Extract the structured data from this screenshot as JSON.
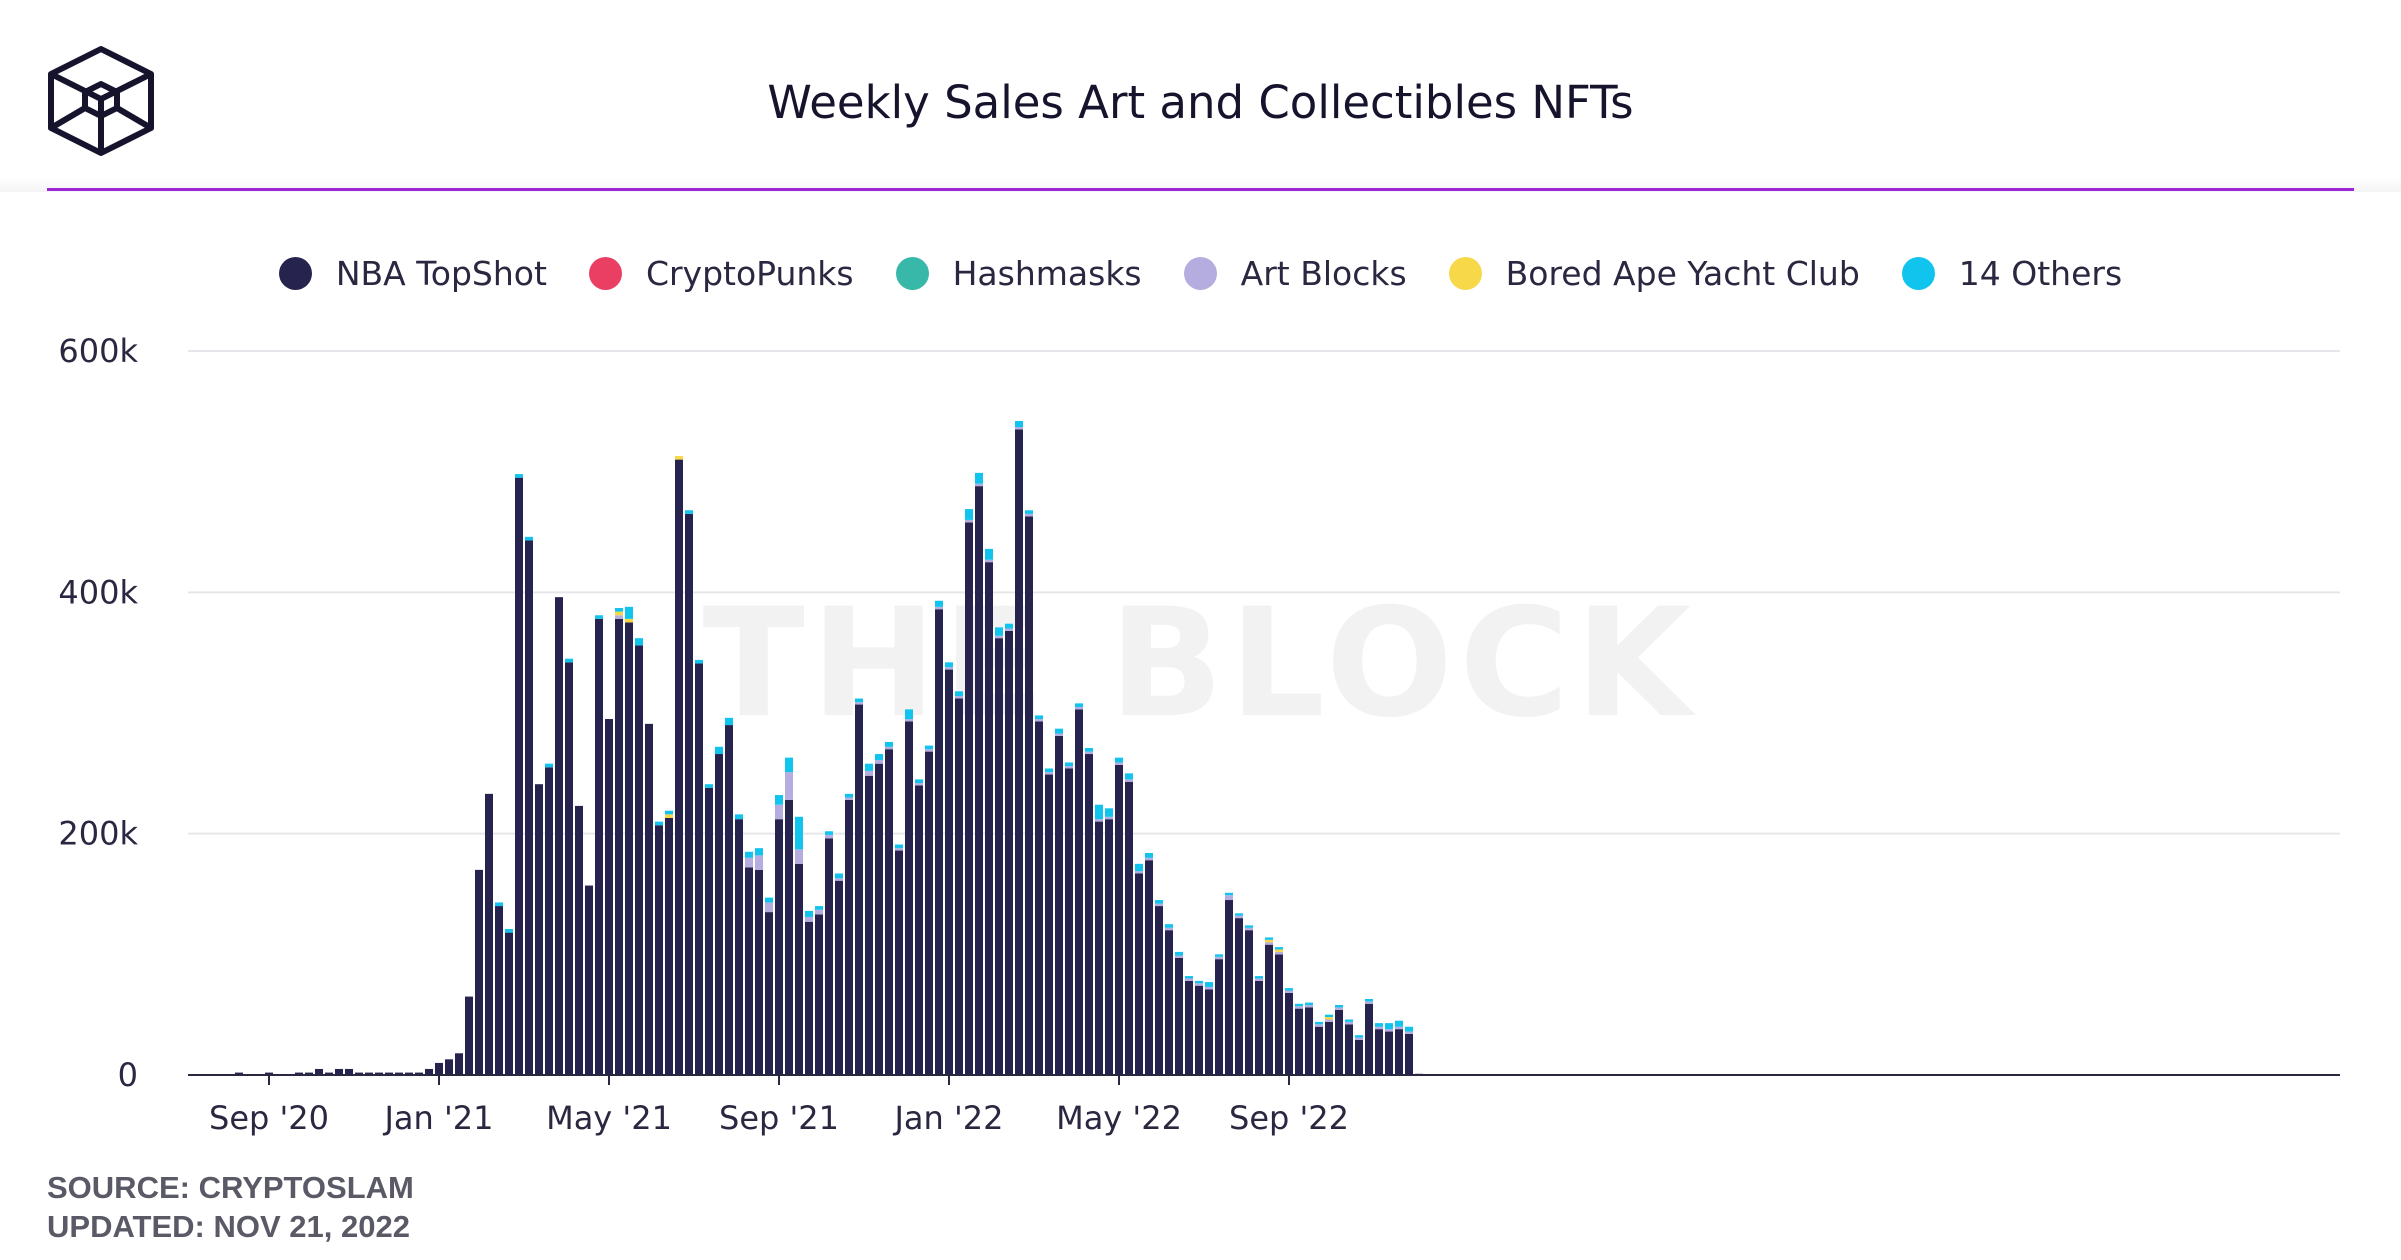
{
  "brand": {
    "logo_icon": "the-block-cube-logo-icon"
  },
  "chart_data": {
    "type": "bar",
    "stacked": true,
    "title": "Weekly Sales Art and Collectibles NFTs",
    "xlabel": "",
    "ylabel": "",
    "ylim": [
      0,
      600000
    ],
    "yticks": [
      {
        "value": 0,
        "label": "0"
      },
      {
        "value": 200000,
        "label": "200k"
      },
      {
        "value": 400000,
        "label": "400k"
      },
      {
        "value": 600000,
        "label": "600k"
      }
    ],
    "xticks": [
      {
        "index": 4,
        "label": "Sep '20"
      },
      {
        "index": 21,
        "label": "Jan '21"
      },
      {
        "index": 38,
        "label": "May '21"
      },
      {
        "index": 55,
        "label": "Sep '21"
      },
      {
        "index": 72,
        "label": "Jan '22"
      },
      {
        "index": 89,
        "label": "May '22"
      },
      {
        "index": 106,
        "label": "Sep '22"
      }
    ],
    "grid": true,
    "watermark": "THE BLOCK",
    "series": [
      {
        "name": "NBA TopShot",
        "color": "#27234f",
        "values": [
          0,
          2000,
          0,
          0,
          2000,
          0,
          0,
          2000,
          2000,
          5000,
          2000,
          5000,
          5000,
          2000,
          2000,
          2000,
          2000,
          2000,
          2000,
          2000,
          5000,
          10000,
          13000,
          18000,
          65000,
          170000,
          233000,
          140000,
          118000,
          495000,
          443000,
          241000,
          255000,
          396000,
          342000,
          223000,
          157000,
          378000,
          295000,
          378000,
          375000,
          356000,
          291000,
          207000,
          213000,
          510000,
          465000,
          341000,
          238000,
          266000,
          290000,
          212000,
          172000,
          170000,
          135000,
          212000,
          228000,
          175000,
          127000,
          133000,
          196000,
          161000,
          228000,
          307000,
          248000,
          258000,
          270000,
          186000,
          293000,
          240000,
          268000,
          386000,
          336000,
          312000,
          458000,
          488000,
          425000,
          362000,
          368000,
          535000,
          463000,
          293000,
          249000,
          281000,
          254000,
          303000,
          266000,
          210000,
          212000,
          257000,
          243000,
          167000,
          178000,
          140000,
          120000,
          97000,
          78000,
          74000,
          71000,
          96000,
          145000,
          130000,
          120000,
          78000,
          108000,
          100000,
          68000,
          55000,
          56000,
          40000,
          44000,
          54000,
          42000,
          29000,
          59000,
          38000,
          36000,
          38000,
          34000,
          1000
        ]
      },
      {
        "name": "CryptoPunks",
        "color": "#ea3e63",
        "values": [
          0,
          0,
          0,
          0,
          0,
          0,
          0,
          0,
          0,
          0,
          0,
          0,
          0,
          0,
          0,
          0,
          0,
          0,
          0,
          0,
          0,
          0,
          0,
          0,
          0,
          0,
          0,
          0,
          0,
          0,
          0,
          0,
          0,
          0,
          0,
          0,
          0,
          0,
          0,
          0,
          0,
          0,
          0,
          0,
          0,
          0,
          0,
          0,
          0,
          0,
          0,
          0,
          0,
          0,
          0,
          0,
          0,
          0,
          0,
          0,
          0,
          0,
          0,
          0,
          0,
          0,
          0,
          0,
          0,
          0,
          0,
          0,
          0,
          0,
          0,
          0,
          0,
          0,
          0,
          0,
          0,
          0,
          0,
          0,
          0,
          0,
          0,
          0,
          0,
          0,
          0,
          0,
          0,
          0,
          0,
          0,
          0,
          0,
          0,
          0,
          0,
          0,
          0,
          0,
          0,
          0,
          0,
          0,
          0,
          0,
          0,
          0,
          0,
          0,
          0,
          0,
          0,
          0,
          0,
          0
        ]
      },
      {
        "name": "Hashmasks",
        "color": "#37b8a9",
        "values": [
          0,
          0,
          0,
          0,
          0,
          0,
          0,
          0,
          0,
          0,
          0,
          0,
          0,
          0,
          0,
          0,
          0,
          0,
          0,
          0,
          0,
          0,
          0,
          0,
          0,
          0,
          0,
          0,
          0,
          0,
          0,
          0,
          0,
          0,
          0,
          0,
          0,
          0,
          0,
          0,
          0,
          0,
          0,
          0,
          0,
          0,
          0,
          0,
          0,
          0,
          0,
          0,
          0,
          0,
          0,
          0,
          0,
          0,
          0,
          0,
          0,
          0,
          0,
          0,
          0,
          0,
          0,
          0,
          0,
          0,
          0,
          0,
          0,
          0,
          0,
          0,
          0,
          0,
          0,
          0,
          0,
          0,
          0,
          0,
          0,
          0,
          0,
          0,
          0,
          0,
          0,
          0,
          0,
          0,
          0,
          0,
          0,
          0,
          0,
          0,
          0,
          0,
          0,
          0,
          0,
          0,
          0,
          0,
          0,
          0,
          0,
          0,
          0,
          0,
          0,
          0,
          0,
          0,
          0,
          0
        ]
      },
      {
        "name": "Art Blocks",
        "color": "#b5addf",
        "values": [
          0,
          0,
          0,
          0,
          0,
          0,
          0,
          0,
          0,
          0,
          0,
          0,
          0,
          0,
          0,
          0,
          0,
          0,
          0,
          0,
          0,
          0,
          0,
          0,
          0,
          0,
          0,
          0,
          0,
          0,
          0,
          0,
          0,
          0,
          0,
          0,
          0,
          0,
          0,
          3000,
          0,
          0,
          0,
          0,
          0,
          0,
          0,
          0,
          0,
          0,
          0,
          0,
          8000,
          12000,
          8000,
          12000,
          23000,
          12000,
          4000,
          4000,
          3000,
          2000,
          2000,
          2000,
          4000,
          3000,
          2000,
          2000,
          2000,
          2000,
          2000,
          2000,
          2000,
          2000,
          2000,
          2000,
          2000,
          2000,
          2000,
          2000,
          2000,
          2000,
          2000,
          2000,
          2000,
          2000,
          2000,
          2000,
          2000,
          2000,
          2000,
          2000,
          2000,
          2000,
          2000,
          2000,
          2000,
          2000,
          2000,
          2000,
          4000,
          2000,
          2000,
          2000,
          2000,
          2000,
          2000,
          2000,
          2000,
          2000,
          2000,
          2000,
          2000,
          2000,
          2000,
          2000,
          2000,
          2000,
          2000,
          0
        ]
      },
      {
        "name": "Bored Ape Yacht Club",
        "color": "#f7d848",
        "values": [
          0,
          0,
          0,
          0,
          0,
          0,
          0,
          0,
          0,
          0,
          0,
          0,
          0,
          0,
          0,
          0,
          0,
          0,
          0,
          0,
          0,
          0,
          0,
          0,
          0,
          0,
          0,
          0,
          0,
          0,
          0,
          0,
          0,
          0,
          0,
          0,
          0,
          0,
          0,
          3000,
          3000,
          0,
          0,
          0,
          3000,
          3000,
          0,
          0,
          0,
          0,
          0,
          0,
          0,
          0,
          0,
          0,
          0,
          0,
          0,
          0,
          0,
          0,
          0,
          0,
          0,
          0,
          0,
          0,
          0,
          0,
          0,
          0,
          0,
          0,
          0,
          0,
          0,
          0,
          0,
          0,
          0,
          0,
          0,
          0,
          0,
          0,
          0,
          0,
          0,
          0,
          0,
          0,
          0,
          0,
          0,
          0,
          0,
          0,
          0,
          0,
          0,
          0,
          0,
          0,
          2000,
          2000,
          0,
          0,
          0,
          0,
          2000,
          0,
          0,
          0,
          0,
          0,
          0,
          0,
          0,
          0
        ]
      },
      {
        "name": "14 Others",
        "color": "#11c4ee",
        "values": [
          0,
          0,
          0,
          0,
          0,
          0,
          0,
          0,
          0,
          0,
          0,
          0,
          0,
          0,
          0,
          0,
          0,
          0,
          0,
          0,
          0,
          0,
          0,
          0,
          0,
          0,
          0,
          3000,
          3000,
          3000,
          3000,
          0,
          3000,
          0,
          3000,
          0,
          0,
          3000,
          0,
          3000,
          10000,
          6000,
          0,
          3000,
          3000,
          0,
          3000,
          3000,
          3000,
          6000,
          6000,
          4000,
          5000,
          6000,
          4000,
          8000,
          12000,
          27000,
          5000,
          3000,
          3000,
          4000,
          3000,
          3000,
          6000,
          5000,
          4000,
          3000,
          8000,
          3000,
          3000,
          5000,
          4000,
          4000,
          9000,
          9000,
          9000,
          7000,
          4000,
          5000,
          3000,
          3000,
          3000,
          4000,
          3000,
          3000,
          3000,
          12000,
          7000,
          4000,
          5000,
          6000,
          4000,
          3000,
          3000,
          3000,
          2000,
          2000,
          4000,
          2000,
          2000,
          2000,
          2000,
          2000,
          2000,
          2000,
          2000,
          2000,
          2000,
          2000,
          2000,
          2000,
          2000,
          2000,
          2000,
          3000,
          5000,
          5000,
          4000,
          0
        ]
      }
    ]
  },
  "source": {
    "line1": "SOURCE: CRYPTOSLAM",
    "line2": "UPDATED: NOV 21, 2022"
  }
}
